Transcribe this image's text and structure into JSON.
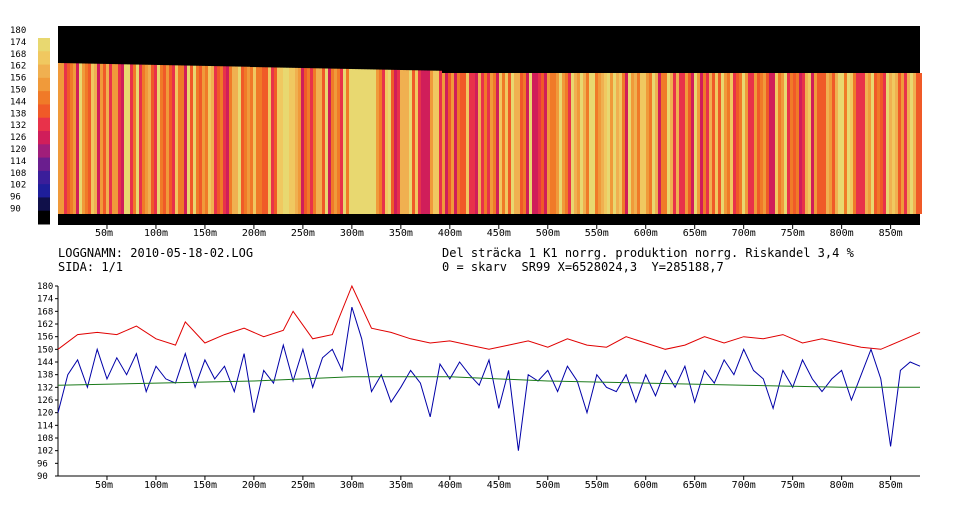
{
  "header": {
    "log_label": "LOGGNAMN: 2010-05-18-02.LOG",
    "page_label": "SIDA: 1/1",
    "section_label": "Del sträcka 1 K1 norrg. produktion norrg. Riskandel 3,4 %",
    "coord_label": "0 = skarv  SR99 X=6528024,3  Y=285188,7"
  },
  "colors": {
    "red_series": "#e00000",
    "blue_series": "#0000a8",
    "green_series": "#1a7a1a",
    "colorscale": [
      "#000000",
      "#10104a",
      "#1e1e9a",
      "#3a1e9a",
      "#6a1e8e",
      "#a01e7a",
      "#d01e5a",
      "#e8324a",
      "#f05a28",
      "#f07a28",
      "#f09a3a",
      "#f0b050",
      "#f0c860",
      "#e8d870"
    ]
  },
  "chart_data": [
    {
      "type": "heatmap",
      "colorbar_ticks": [
        "180",
        "174",
        "168",
        "162",
        "156",
        "150",
        "144",
        "138",
        "132",
        "126",
        "120",
        "114",
        "108",
        "102",
        "96",
        "90"
      ],
      "x_ticks": [
        "50m",
        "100m",
        "150m",
        "200m",
        "250m",
        "300m",
        "350m",
        "400m",
        "450m",
        "500m",
        "550m",
        "600m",
        "650m",
        "700m",
        "750m",
        "800m",
        "850m"
      ],
      "xlim": [
        0,
        880
      ],
      "ylim": [
        90,
        180
      ]
    },
    {
      "type": "line",
      "y_ticks": [
        "180",
        "174",
        "168",
        "162",
        "156",
        "150",
        "144",
        "138",
        "132",
        "126",
        "120",
        "114",
        "108",
        "102",
        "96",
        "90"
      ],
      "x_ticks": [
        "50m",
        "100m",
        "150m",
        "200m",
        "250m",
        "300m",
        "350m",
        "400m",
        "450m",
        "500m",
        "550m",
        "600m",
        "650m",
        "700m",
        "750m",
        "800m",
        "850m"
      ],
      "xlim": [
        0,
        880
      ],
      "ylim": [
        90,
        180
      ],
      "series": [
        {
          "color": "red",
          "values": [
            [
              0,
              150
            ],
            [
              20,
              157
            ],
            [
              40,
              158
            ],
            [
              60,
              157
            ],
            [
              80,
              161
            ],
            [
              100,
              155
            ],
            [
              120,
              152
            ],
            [
              130,
              163
            ],
            [
              150,
              153
            ],
            [
              170,
              157
            ],
            [
              190,
              160
            ],
            [
              210,
              156
            ],
            [
              230,
              159
            ],
            [
              240,
              168
            ],
            [
              260,
              155
            ],
            [
              280,
              157
            ],
            [
              300,
              180
            ],
            [
              320,
              160
            ],
            [
              340,
              158
            ],
            [
              360,
              155
            ],
            [
              380,
              153
            ],
            [
              400,
              154
            ],
            [
              420,
              152
            ],
            [
              440,
              150
            ],
            [
              460,
              152
            ],
            [
              480,
              154
            ],
            [
              500,
              151
            ],
            [
              520,
              155
            ],
            [
              540,
              152
            ],
            [
              560,
              151
            ],
            [
              580,
              156
            ],
            [
              600,
              153
            ],
            [
              620,
              150
            ],
            [
              640,
              152
            ],
            [
              660,
              156
            ],
            [
              680,
              153
            ],
            [
              700,
              156
            ],
            [
              720,
              155
            ],
            [
              740,
              157
            ],
            [
              760,
              153
            ],
            [
              780,
              155
            ],
            [
              800,
              153
            ],
            [
              820,
              151
            ],
            [
              840,
              150
            ],
            [
              860,
              154
            ],
            [
              880,
              158
            ]
          ]
        },
        {
          "color": "blue",
          "values": [
            [
              0,
              120
            ],
            [
              10,
              138
            ],
            [
              20,
              145
            ],
            [
              30,
              132
            ],
            [
              40,
              150
            ],
            [
              50,
              136
            ],
            [
              60,
              146
            ],
            [
              70,
              138
            ],
            [
              80,
              148
            ],
            [
              90,
              130
            ],
            [
              100,
              142
            ],
            [
              110,
              136
            ],
            [
              120,
              134
            ],
            [
              130,
              148
            ],
            [
              140,
              132
            ],
            [
              150,
              145
            ],
            [
              160,
              136
            ],
            [
              170,
              142
            ],
            [
              180,
              130
            ],
            [
              190,
              148
            ],
            [
              200,
              120
            ],
            [
              210,
              140
            ],
            [
              220,
              134
            ],
            [
              230,
              152
            ],
            [
              240,
              135
            ],
            [
              250,
              150
            ],
            [
              260,
              132
            ],
            [
              270,
              146
            ],
            [
              280,
              150
            ],
            [
              290,
              140
            ],
            [
              300,
              170
            ],
            [
              310,
              155
            ],
            [
              320,
              130
            ],
            [
              330,
              138
            ],
            [
              340,
              125
            ],
            [
              350,
              132
            ],
            [
              360,
              140
            ],
            [
              370,
              134
            ],
            [
              380,
              118
            ],
            [
              390,
              143
            ],
            [
              400,
              136
            ],
            [
              410,
              144
            ],
            [
              420,
              138
            ],
            [
              430,
              133
            ],
            [
              440,
              145
            ],
            [
              450,
              122
            ],
            [
              460,
              140
            ],
            [
              470,
              102
            ],
            [
              480,
              138
            ],
            [
              490,
              135
            ],
            [
              500,
              140
            ],
            [
              510,
              130
            ],
            [
              520,
              142
            ],
            [
              530,
              135
            ],
            [
              540,
              120
            ],
            [
              550,
              138
            ],
            [
              560,
              132
            ],
            [
              570,
              130
            ],
            [
              580,
              138
            ],
            [
              590,
              125
            ],
            [
              600,
              138
            ],
            [
              610,
              128
            ],
            [
              620,
              140
            ],
            [
              630,
              132
            ],
            [
              640,
              142
            ],
            [
              650,
              125
            ],
            [
              660,
              140
            ],
            [
              670,
              134
            ],
            [
              680,
              145
            ],
            [
              690,
              138
            ],
            [
              700,
              150
            ],
            [
              710,
              140
            ],
            [
              720,
              136
            ],
            [
              730,
              122
            ],
            [
              740,
              140
            ],
            [
              750,
              132
            ],
            [
              760,
              145
            ],
            [
              770,
              136
            ],
            [
              780,
              130
            ],
            [
              790,
              136
            ],
            [
              800,
              140
            ],
            [
              810,
              126
            ],
            [
              820,
              138
            ],
            [
              830,
              150
            ],
            [
              840,
              136
            ],
            [
              850,
              104
            ],
            [
              860,
              140
            ],
            [
              870,
              144
            ],
            [
              880,
              142
            ]
          ]
        },
        {
          "color": "green",
          "values": [
            [
              0,
              133
            ],
            [
              100,
              134
            ],
            [
              200,
              135
            ],
            [
              300,
              137
            ],
            [
              400,
              137
            ],
            [
              500,
              135
            ],
            [
              600,
              134
            ],
            [
              700,
              133
            ],
            [
              800,
              132
            ],
            [
              880,
              132
            ]
          ]
        }
      ]
    }
  ]
}
